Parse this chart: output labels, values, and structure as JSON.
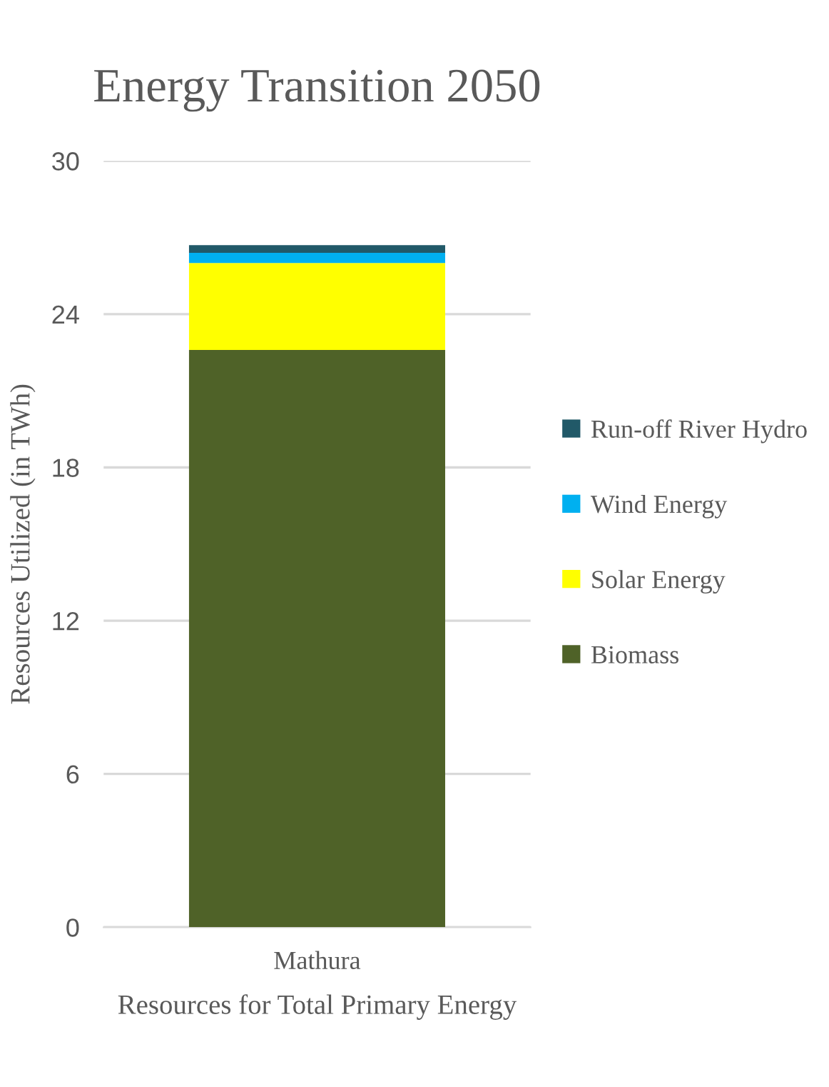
{
  "chart_data": {
    "type": "bar",
    "stacked": true,
    "title": "Energy Transition 2050",
    "xlabel": "Resources for Total Primary Energy",
    "ylabel": "Resources Utilized (in TWh)",
    "categories": [
      "Mathura"
    ],
    "series": [
      {
        "name": "Biomass",
        "color": "#4f6228",
        "values": [
          22.6
        ]
      },
      {
        "name": "Solar Energy",
        "color": "#ffff00",
        "values": [
          3.4
        ]
      },
      {
        "name": "Wind Energy",
        "color": "#00b0f0",
        "values": [
          0.4
        ]
      },
      {
        "name": "Run-off River Hydro",
        "color": "#215968",
        "values": [
          0.3
        ]
      }
    ],
    "ylim": [
      0,
      30
    ],
    "yticks": [
      0,
      6,
      12,
      18,
      24,
      30
    ],
    "grid": "y",
    "legend": "right"
  }
}
